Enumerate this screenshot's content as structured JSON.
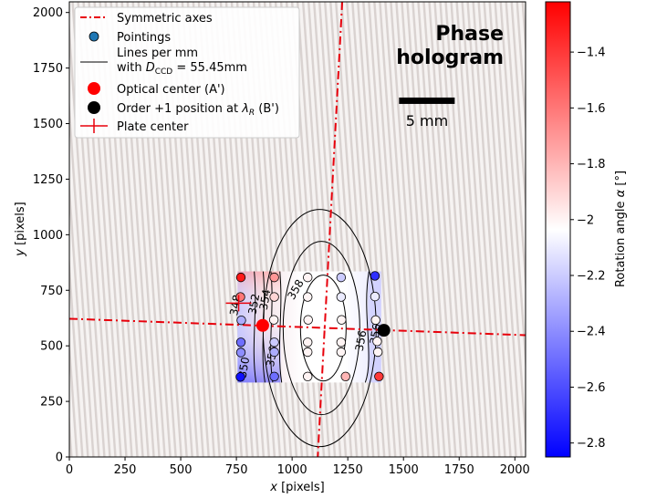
{
  "chart_data": {
    "type": "heatmap",
    "xlabel_pre": "x",
    "xlabel_post": " [pixels]",
    "ylabel_pre": "y",
    "ylabel_post": " [pixels]",
    "xlim": [
      0,
      2048
    ],
    "ylim": [
      0,
      2048
    ],
    "x_ticks": [
      0,
      250,
      500,
      750,
      1000,
      1250,
      1500,
      1750,
      2000
    ],
    "y_ticks": [
      0,
      250,
      500,
      750,
      1000,
      1250,
      1500,
      1750,
      2000
    ],
    "annotation": {
      "line1": "Phase",
      "line2": "hologram"
    },
    "scale_bar": {
      "label": "5 mm",
      "x_start": 1480,
      "x_end": 1730,
      "y": 1605
    },
    "legend": {
      "location": "upper left",
      "entries": [
        {
          "label": "Symmetric axes",
          "marker": "dashdot-line",
          "color": "#e8000b"
        },
        {
          "label": "Pointings",
          "marker": "circle",
          "color": "#1f77b4"
        },
        {
          "label_line1": "Lines per mm",
          "label_line2_pre": "with ",
          "label_line2_var": "D",
          "label_line2_sub": "CCD",
          "label_line2_post": " = 55.45mm",
          "marker": "line",
          "color": "#000000"
        },
        {
          "label": "Optical center (A')",
          "marker": "big-dot",
          "color": "#ff0000"
        },
        {
          "label_pre": "Order +1 position at ",
          "label_var": "λ",
          "label_sub": "R",
          "label_post": " (B')",
          "marker": "big-dot",
          "color": "#000000"
        },
        {
          "label": "Plate center",
          "marker": "plus",
          "color": "#e8000b"
        }
      ]
    },
    "colorbar": {
      "label_pre": "Rotation angle ",
      "label_var": "α",
      "label_post": " [°]",
      "min": -2.85,
      "max": -1.22,
      "ticks": [
        -1.4,
        -1.6,
        -1.8,
        -2.0,
        -2.2,
        -2.4,
        -2.6,
        -2.8
      ],
      "cmap": "bwr"
    },
    "heatmap_region": {
      "x": [
        755,
        1400
      ],
      "y": [
        335,
        835
      ]
    },
    "symmetric_axes": [
      {
        "x": [
          1225,
          1115
        ],
        "y": [
          2048,
          0
        ]
      },
      {
        "x": [
          0,
          2048
        ],
        "y": [
          622,
          548
        ]
      }
    ],
    "optical_center": {
      "x": 868,
      "y": 592
    },
    "order1_position": {
      "x": 1412,
      "y": 570
    },
    "plate_center": {
      "x": 760,
      "y": 692
    },
    "pointings": [
      {
        "x": 770,
        "y": 808,
        "v": -1.3
      },
      {
        "x": 768,
        "y": 720,
        "v": -1.6
      },
      {
        "x": 772,
        "y": 615,
        "v": -2.3
      },
      {
        "x": 770,
        "y": 516,
        "v": -2.5
      },
      {
        "x": 770,
        "y": 470,
        "v": -2.4
      },
      {
        "x": 768,
        "y": 360,
        "v": -2.8
      },
      {
        "x": 920,
        "y": 808,
        "v": -1.7
      },
      {
        "x": 920,
        "y": 720,
        "v": -1.9
      },
      {
        "x": 918,
        "y": 617,
        "v": -2.0
      },
      {
        "x": 920,
        "y": 516,
        "v": -2.2
      },
      {
        "x": 920,
        "y": 472,
        "v": -2.3
      },
      {
        "x": 920,
        "y": 362,
        "v": -2.5
      },
      {
        "x": 1070,
        "y": 808,
        "v": -2.0
      },
      {
        "x": 1070,
        "y": 720,
        "v": -2.0
      },
      {
        "x": 1072,
        "y": 617,
        "v": -2.0
      },
      {
        "x": 1070,
        "y": 516,
        "v": -2.0
      },
      {
        "x": 1070,
        "y": 472,
        "v": -2.0
      },
      {
        "x": 1070,
        "y": 362,
        "v": -2.0
      },
      {
        "x": 1220,
        "y": 808,
        "v": -2.2
      },
      {
        "x": 1220,
        "y": 720,
        "v": -2.1
      },
      {
        "x": 1222,
        "y": 617,
        "v": -2.0
      },
      {
        "x": 1220,
        "y": 516,
        "v": -2.0
      },
      {
        "x": 1220,
        "y": 472,
        "v": -2.0
      },
      {
        "x": 1240,
        "y": 362,
        "v": -1.8
      },
      {
        "x": 1372,
        "y": 815,
        "v": -2.7
      },
      {
        "x": 1372,
        "y": 722,
        "v": -2.1
      },
      {
        "x": 1375,
        "y": 616,
        "v": -2.0
      },
      {
        "x": 1382,
        "y": 520,
        "v": -2.0
      },
      {
        "x": 1385,
        "y": 472,
        "v": -2.0
      },
      {
        "x": 1390,
        "y": 362,
        "v": -1.4
      }
    ],
    "contour_labels": [
      "348",
      "350",
      "352",
      "354",
      "356",
      "356",
      "358",
      "356"
    ]
  }
}
